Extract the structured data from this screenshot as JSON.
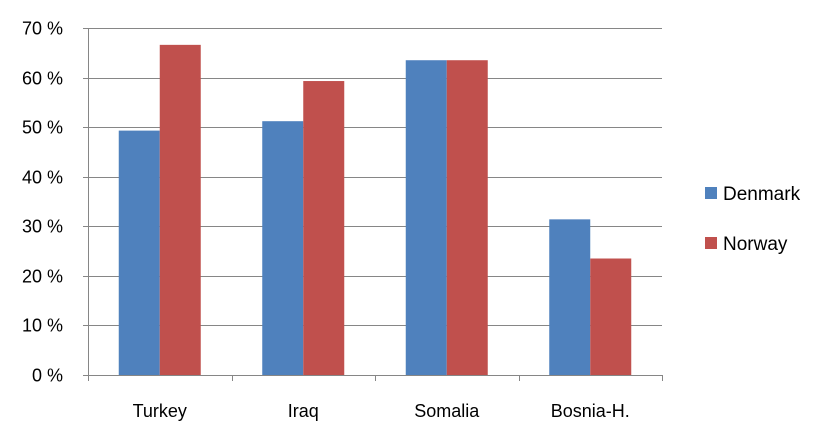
{
  "chart_data": {
    "type": "bar",
    "title": "",
    "xlabel": "",
    "ylabel": "",
    "categories": [
      "Turkey",
      "Iraq",
      "Somalia",
      "Bosnia-H."
    ],
    "series": [
      {
        "name": "Denmark",
        "color": "#4f81bd",
        "values": [
          49.3,
          51.2,
          63.5,
          31.4
        ]
      },
      {
        "name": "Norway",
        "color": "#c0504d",
        "values": [
          66.6,
          59.3,
          63.5,
          23.5
        ]
      }
    ],
    "ylim": [
      0,
      70
    ],
    "yticks": [
      0,
      10,
      20,
      30,
      40,
      50,
      60,
      70
    ],
    "ytick_labels": [
      "0 %",
      "10 %",
      "20 %",
      "30 %",
      "40 %",
      "50 %",
      "60 %",
      "70 %"
    ],
    "grid": true,
    "legend_position": "right"
  }
}
